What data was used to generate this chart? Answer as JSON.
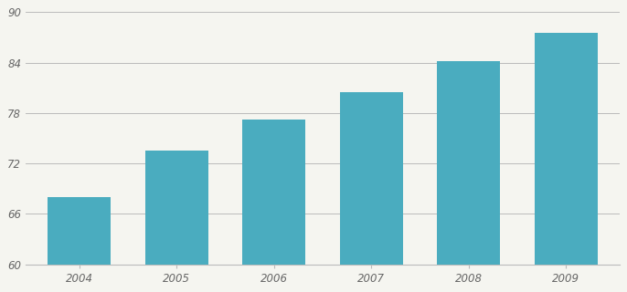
{
  "categories": [
    "2004",
    "2005",
    "2006",
    "2007",
    "2008",
    "2009"
  ],
  "values": [
    68.0,
    73.5,
    77.2,
    80.5,
    84.2,
    87.5
  ],
  "bar_color": "#4AACBF",
  "background_color": "#f5f5f0",
  "ylim": [
    60,
    90
  ],
  "yticks": [
    60,
    66,
    72,
    78,
    84,
    90
  ],
  "grid_color": "#bbbbbb",
  "bar_width": 0.65,
  "tick_label_color": "#666666",
  "tick_label_fontsize": 8.5
}
